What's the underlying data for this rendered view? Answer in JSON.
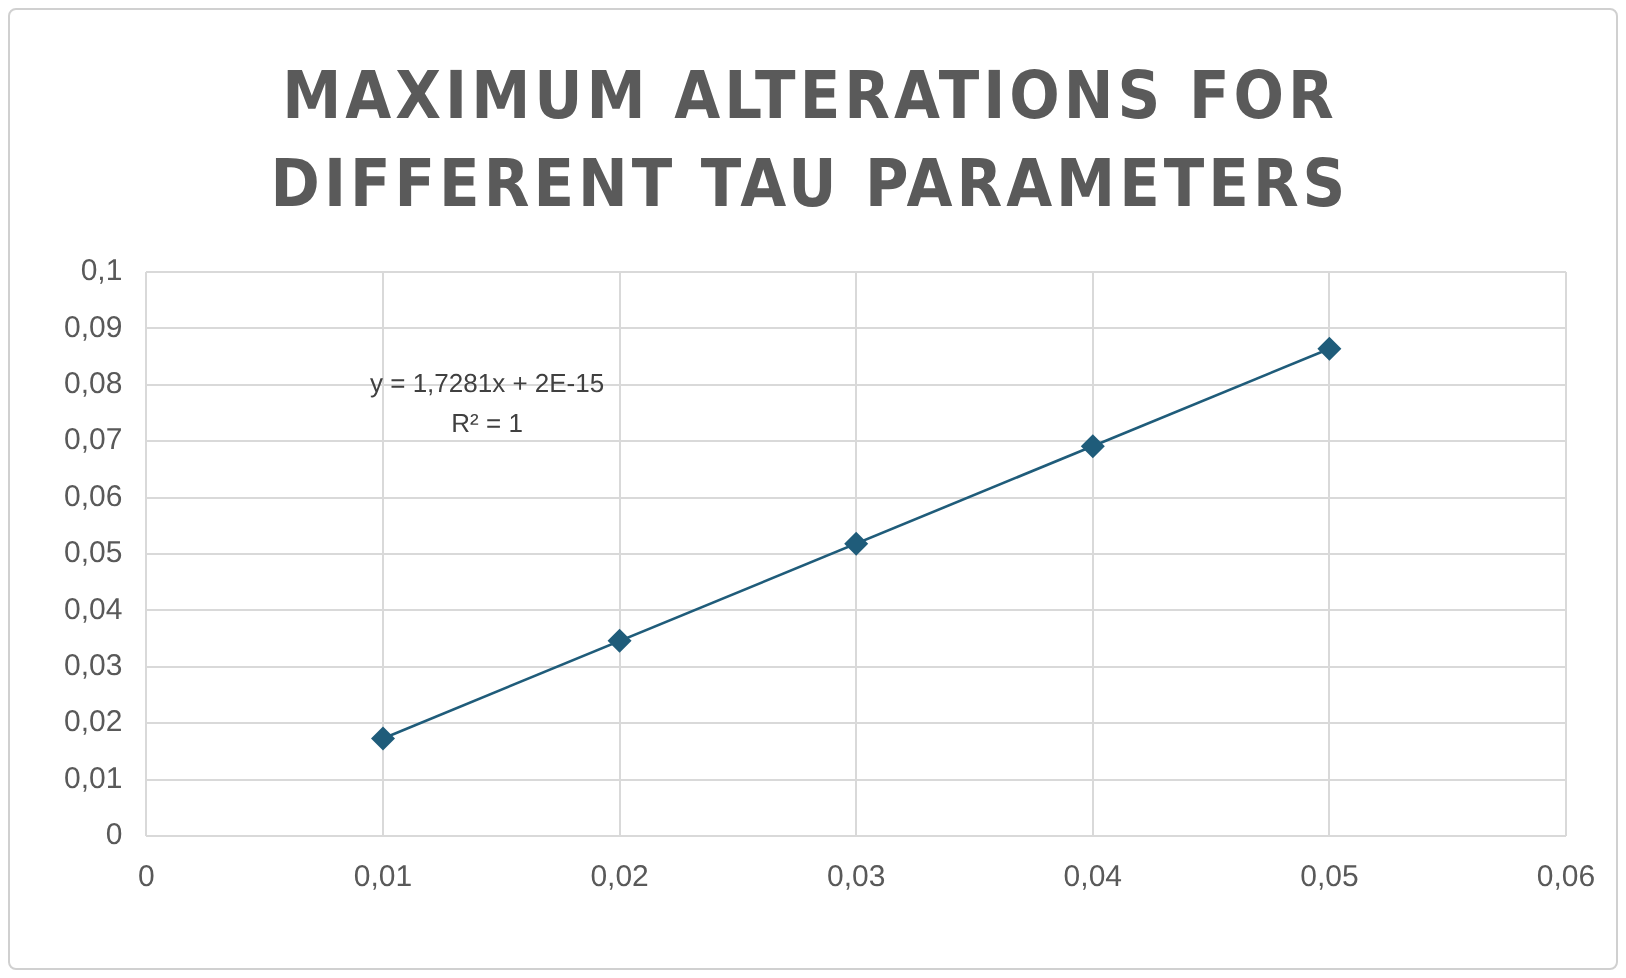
{
  "chart_data": {
    "type": "scatter",
    "title": "MAXIMUM ALTERATIONS FOR DIFFERENT TAU PARAMETERS",
    "x": [
      0.01,
      0.02,
      0.03,
      0.04,
      0.05
    ],
    "series": [
      {
        "type": "scatter",
        "color": "#1f5c7a",
        "values": [
          0.0173,
          0.0346,
          0.0518,
          0.0691,
          0.0864
        ]
      },
      {
        "type": "line",
        "marker": "none",
        "color": "#1f5c7a",
        "x": [
          0.01,
          0.05
        ],
        "values": [
          0.0173,
          0.0864
        ]
      }
    ],
    "marker": "diamond",
    "grid": true,
    "xlim": [
      0,
      0.06
    ],
    "xticks": [
      0,
      {
        "value": 0.01,
        "label": "0,01"
      },
      {
        "value": 0.02,
        "label": "0,02"
      },
      {
        "value": 0.03,
        "label": "0,03"
      },
      {
        "value": 0.04,
        "label": "0,04"
      },
      {
        "value": 0.05,
        "label": "0,05"
      },
      {
        "value": 0.06,
        "label": "0,06"
      }
    ],
    "ylim": [
      0,
      0.1
    ],
    "yticks": [
      0,
      {
        "value": 0.01,
        "label": "0,01"
      },
      {
        "value": 0.02,
        "label": "0,02"
      },
      {
        "value": 0.03,
        "label": "0,03"
      },
      {
        "value": 0.04,
        "label": "0,04"
      },
      {
        "value": 0.05,
        "label": "0,05"
      },
      {
        "value": 0.06,
        "label": "0,06"
      },
      {
        "value": 0.07,
        "label": "0,07"
      },
      {
        "value": 0.08,
        "label": "0,08"
      },
      {
        "value": 0.09,
        "label": "0,09"
      },
      {
        "value": 0.1,
        "label": "0,1"
      }
    ],
    "annotations": [
      "y = 1,7281x + 2E-15",
      "R² = 1"
    ]
  }
}
